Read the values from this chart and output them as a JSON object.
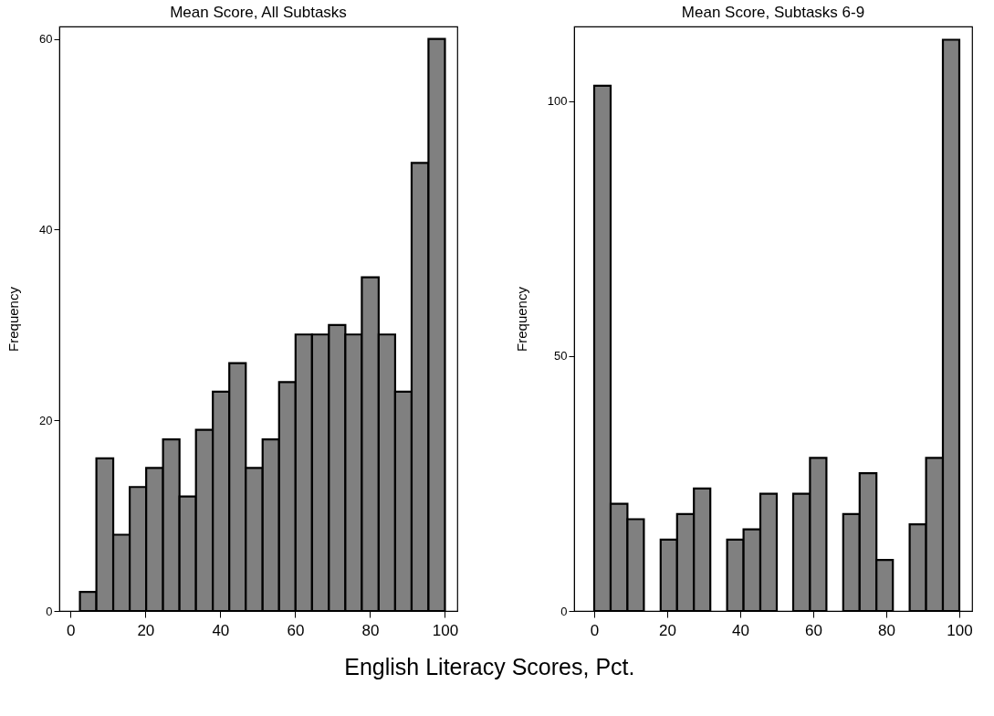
{
  "chart_data": [
    {
      "type": "histogram",
      "title": "Mean Score, All Subtasks",
      "ylabel": "Frequency",
      "xlabel": "English Literacy Scores, Pct.",
      "bins": [
        2.5,
        6.9,
        11.4,
        15.8,
        20.2,
        24.7,
        29.1,
        33.5,
        38.0,
        42.4,
        46.8,
        51.3,
        55.7,
        60.1,
        64.5,
        69.0,
        73.4,
        77.8,
        82.3,
        86.7,
        91.1,
        95.6,
        100
      ],
      "values": [
        2,
        16,
        8,
        13,
        15,
        18,
        12,
        19,
        23,
        26,
        15,
        18,
        24,
        29,
        29,
        30,
        29,
        35,
        29,
        23,
        47,
        60
      ],
      "color": "#808080",
      "xlim": [
        -3,
        103.3
      ],
      "xticks": [
        0,
        20,
        40,
        60,
        80,
        100
      ],
      "ylim": [
        0,
        61.3
      ],
      "yticks": [
        0,
        20,
        40,
        60
      ],
      "grid": false
    },
    {
      "type": "histogram",
      "title": "Mean Score, Subtasks 6-9",
      "ylabel": "Frequency",
      "bins": [
        0,
        4.5,
        9.1,
        13.6,
        18.2,
        22.7,
        27.3,
        31.8,
        36.4,
        40.9,
        45.5,
        50,
        54.5,
        59.1,
        63.6,
        68.2,
        72.7,
        77.3,
        81.8,
        86.4,
        90.9,
        95.5,
        100
      ],
      "values": [
        103,
        21,
        18,
        0,
        14,
        19,
        24,
        0,
        14,
        16,
        23,
        0,
        23,
        30,
        0,
        19,
        27,
        10,
        0,
        17,
        30,
        112
      ],
      "color": "#808080",
      "xlim": [
        -5.5,
        103.5
      ],
      "xticks": [
        0,
        20,
        40,
        60,
        80,
        100
      ],
      "ylim": [
        0,
        114.6
      ],
      "yticks": [
        0,
        50,
        100
      ],
      "grid": false
    }
  ]
}
